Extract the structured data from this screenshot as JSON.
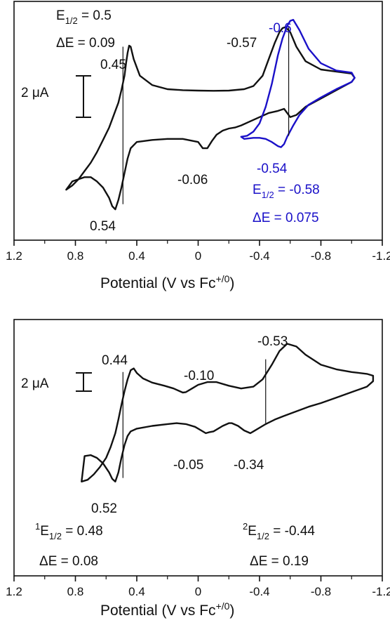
{
  "chart_data": [
    {
      "type": "line",
      "xlabel": "Potential (V vs Fc",
      "xlabel_sup": "+/0",
      "xlabel_close": ")",
      "xlim": [
        1.2,
        -1.2
      ],
      "xticks": [
        1.2,
        0.8,
        0.4,
        0,
        -0.4,
        -0.8,
        -1.2
      ],
      "xtick_labels": [
        "1.2",
        "0.8",
        "0.4",
        "0",
        "-0.4",
        "-0.8",
        "-1.2"
      ],
      "scale_bar": {
        "value": 2,
        "label": "2 μA"
      },
      "series": [
        {
          "color": "#111111",
          "x": [
            0.86,
            0.82,
            0.78,
            0.74,
            0.7,
            0.66,
            0.62,
            0.58,
            0.56,
            0.54,
            0.52,
            0.5,
            0.48,
            0.47,
            0.46,
            0.45,
            0.44,
            0.42,
            0.38,
            0.3,
            0.2,
            0.1,
            0.0,
            -0.1,
            -0.2,
            -0.3,
            -0.36,
            -0.42,
            -0.46,
            -0.5,
            -0.53,
            -0.55,
            -0.57,
            -0.6,
            -0.64,
            -0.7,
            -0.8,
            -0.9,
            -1.0,
            -1.02,
            -1.0,
            -0.9,
            -0.8,
            -0.7,
            -0.64,
            -0.6,
            -0.58,
            -0.56,
            -0.52,
            -0.46,
            -0.4,
            -0.34,
            -0.28,
            -0.24,
            -0.2,
            -0.16,
            -0.12,
            -0.09,
            -0.06,
            -0.03,
            0.0,
            0.1,
            0.2,
            0.3,
            0.4,
            0.44,
            0.46,
            0.48,
            0.5,
            0.52,
            0.54,
            0.56,
            0.58,
            0.62,
            0.66,
            0.7,
            0.74,
            0.78,
            0.82,
            0.86
          ],
          "y": [
            -3.9,
            -3.7,
            -3.4,
            -3.0,
            -2.6,
            -2.1,
            -1.5,
            -0.9,
            -0.5,
            -0.1,
            0.3,
            0.9,
            1.6,
            2.2,
            2.7,
            3.05,
            3.0,
            2.4,
            1.6,
            1.15,
            0.95,
            0.9,
            0.88,
            0.87,
            0.88,
            0.95,
            1.1,
            1.6,
            2.4,
            3.2,
            3.7,
            3.9,
            3.95,
            3.7,
            3.0,
            2.3,
            1.9,
            1.8,
            1.7,
            1.5,
            1.3,
            0.9,
            0.5,
            0.1,
            -0.3,
            -0.4,
            -0.2,
            0.0,
            -0.1,
            -0.2,
            -0.4,
            -0.6,
            -0.8,
            -0.9,
            -0.95,
            -1.05,
            -1.25,
            -1.55,
            -1.9,
            -1.9,
            -1.6,
            -1.45,
            -1.45,
            -1.5,
            -1.6,
            -1.9,
            -2.4,
            -3.1,
            -3.8,
            -4.4,
            -4.85,
            -4.7,
            -4.3,
            -3.8,
            -3.5,
            -3.3,
            -3.3,
            -3.4,
            -3.5,
            -3.9
          ]
        },
        {
          "color": "#1a10c8",
          "x": [
            -0.28,
            -0.32,
            -0.36,
            -0.4,
            -0.44,
            -0.48,
            -0.52,
            -0.55,
            -0.58,
            -0.6,
            -0.62,
            -0.66,
            -0.72,
            -0.8,
            -0.9,
            -1.0,
            -1.02,
            -1.0,
            -0.9,
            -0.8,
            -0.72,
            -0.66,
            -0.62,
            -0.58,
            -0.56,
            -0.54,
            -0.52,
            -0.48,
            -0.44,
            -0.4,
            -0.36,
            -0.3,
            -0.28
          ],
          "y": [
            -1.35,
            -1.3,
            -1.1,
            -0.7,
            0.1,
            1.2,
            2.6,
            3.4,
            4.0,
            4.25,
            4.3,
            3.8,
            2.9,
            2.2,
            1.85,
            1.75,
            1.5,
            1.3,
            0.95,
            0.55,
            0.2,
            -0.3,
            -0.8,
            -1.35,
            -1.7,
            -1.85,
            -1.8,
            -1.6,
            -1.45,
            -1.4,
            -1.4,
            -1.45,
            -1.35
          ]
        }
      ],
      "vlines": [
        {
          "x": 0.49,
          "y": [
            -4.6,
            3.0
          ],
          "color": "#111111"
        },
        {
          "x": -0.59,
          "y": [
            -1.3,
            4.0
          ],
          "color": "#111111"
        }
      ],
      "annotations": [
        {
          "text": "0.45",
          "color": "#111111"
        },
        {
          "text": "0.54",
          "color": "#111111"
        },
        {
          "text": "-0.06",
          "color": "#111111"
        },
        {
          "text": "-0.57",
          "color": "#111111"
        },
        {
          "text": "-0.6",
          "color": "#1a10c8"
        },
        {
          "text": "-0.54",
          "color": "#1a10c8"
        }
      ],
      "e_half_blocks": [
        {
          "pre": "",
          "sub": "1/2",
          "value": " = 0.5",
          "delta": "ΔE = 0.09",
          "color": "#111111"
        },
        {
          "pre": "",
          "sub": "1/2",
          "value": " = -0.58",
          "delta": "ΔE = 0.075",
          "color": "#1a10c8"
        }
      ]
    },
    {
      "type": "line",
      "xlabel": "Potential (V vs Fc",
      "xlabel_sup": "+/0",
      "xlabel_close": ")",
      "xlim": [
        1.2,
        -1.2
      ],
      "xticks": [
        1.2,
        0.8,
        0.4,
        0,
        -0.4,
        -0.8,
        -1.2
      ],
      "xtick_labels": [
        "1.2",
        "0.8",
        "0.4",
        "0",
        "-0.4",
        "-0.8",
        "-1.2"
      ],
      "scale_bar": {
        "value": 2,
        "label": "2 μA"
      },
      "series": [
        {
          "color": "#111111",
          "x": [
            0.76,
            0.72,
            0.68,
            0.64,
            0.6,
            0.57,
            0.54,
            0.52,
            0.5,
            0.48,
            0.46,
            0.44,
            0.42,
            0.4,
            0.36,
            0.3,
            0.22,
            0.16,
            0.12,
            0.1,
            0.08,
            0.04,
            0.0,
            -0.06,
            -0.12,
            -0.2,
            -0.28,
            -0.36,
            -0.42,
            -0.48,
            -0.53,
            -0.58,
            -0.64,
            -0.7,
            -0.8,
            -0.9,
            -1.0,
            -1.1,
            -1.14,
            -1.14,
            -1.1,
            -1.0,
            -0.9,
            -0.8,
            -0.72,
            -0.64,
            -0.56,
            -0.5,
            -0.44,
            -0.4,
            -0.36,
            -0.34,
            -0.3,
            -0.26,
            -0.22,
            -0.2,
            -0.16,
            -0.1,
            -0.07,
            -0.05,
            -0.02,
            0.02,
            0.08,
            0.14,
            0.2,
            0.3,
            0.4,
            0.44,
            0.46,
            0.48,
            0.5,
            0.52,
            0.54,
            0.56,
            0.58,
            0.62,
            0.66,
            0.7,
            0.74,
            0.76
          ],
          "y": [
            -6.6,
            -6.4,
            -5.8,
            -5.0,
            -4.0,
            -2.8,
            -1.3,
            0.2,
            1.8,
            3.3,
            4.6,
            5.6,
            5.8,
            5.3,
            4.7,
            4.25,
            3.9,
            3.6,
            3.3,
            3.15,
            3.2,
            3.6,
            4.0,
            4.3,
            4.3,
            3.9,
            3.6,
            3.8,
            4.6,
            6.2,
            7.7,
            8.5,
            8.2,
            7.3,
            6.2,
            5.7,
            5.4,
            5.2,
            5.0,
            4.4,
            3.8,
            3.2,
            2.6,
            2.0,
            1.6,
            1.1,
            0.6,
            0.2,
            -0.3,
            -0.7,
            -1.1,
            -1.3,
            -1.0,
            -0.5,
            -0.2,
            -0.2,
            -0.5,
            -1.1,
            -1.2,
            -1.3,
            -1.0,
            -0.6,
            -0.3,
            -0.2,
            -0.3,
            -0.5,
            -0.8,
            -1.1,
            -1.6,
            -2.6,
            -4.0,
            -5.6,
            -6.6,
            -6.3,
            -5.6,
            -4.6,
            -4.0,
            -3.7,
            -3.8,
            -6.6
          ]
        }
      ],
      "vlines": [
        {
          "x": 0.49,
          "y": [
            -6.2,
            5.4
          ],
          "color": "#111111"
        },
        {
          "x": -0.44,
          "y": [
            -0.2,
            6.8
          ],
          "color": "#111111"
        }
      ],
      "annotations": [
        {
          "text": "0.44",
          "color": "#111111"
        },
        {
          "text": "0.52",
          "color": "#111111"
        },
        {
          "text": "-0.10",
          "color": "#111111"
        },
        {
          "text": "-0.05",
          "color": "#111111"
        },
        {
          "text": "-0.53",
          "color": "#111111"
        },
        {
          "text": "-0.34",
          "color": "#111111"
        }
      ],
      "e_half_blocks": [
        {
          "pre": "1",
          "sub": "1/2",
          "value": " = 0.48",
          "delta": "ΔE = 0.08",
          "color": "#111111"
        },
        {
          "pre": "2",
          "sub": "1/2",
          "value": " = -0.44",
          "delta": "ΔE = 0.19",
          "color": "#111111"
        }
      ]
    }
  ]
}
